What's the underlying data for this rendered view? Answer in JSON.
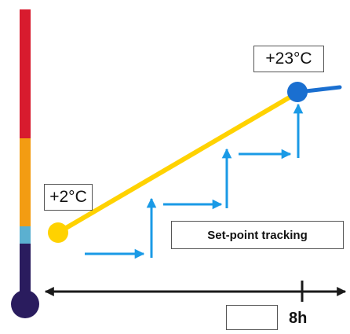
{
  "colors": {
    "thermo_hot": "#d81b2e",
    "thermo_warm": "#f39c12",
    "thermo_mild": "#5bb0d0",
    "thermo_cold": "#2a1c5e",
    "ramp_line": "#ffd200",
    "start_dot": "#ffd200",
    "end_dot": "#1a6fd0",
    "step_arrows": "#1a9ae6",
    "time_axis": "#1a1a1a"
  },
  "icons": {
    "thermometer": "thermometer-icon",
    "clock": "clock-icon"
  },
  "labels": {
    "start_temp": "+2°C",
    "end_temp": "+23°C",
    "tracking": "Set-point tracking",
    "duration": "8h"
  }
}
